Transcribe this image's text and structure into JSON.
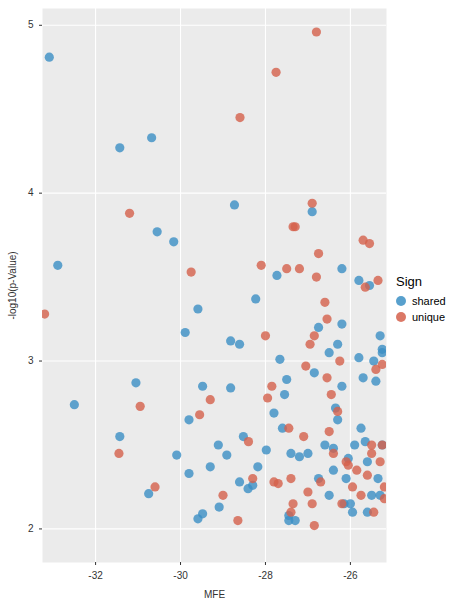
{
  "chart_data": {
    "type": "scatter",
    "x_label": "MFE",
    "y_label": "-log10(p-Value)",
    "legend_title": "Sign",
    "legend": "right",
    "grid": true,
    "xlim": [
      -33.25,
      -25.15
    ],
    "ylim": [
      1.8,
      5.1
    ],
    "xticks": [
      -32,
      -30,
      -28,
      -26
    ],
    "yticks": [
      2,
      3,
      4,
      5
    ],
    "series": [
      {
        "name": "shared",
        "color": "#3B8FC4",
        "x": [
          -33.09,
          -32.89,
          -32.5,
          -31.43,
          -31.43,
          -31.05,
          -30.68,
          -30.75,
          -30.55,
          -30.16,
          -30.09,
          -29.89,
          -29.8,
          -29.8,
          -29.59,
          -29.59,
          -29.48,
          -29.48,
          -29.3,
          -29.11,
          -29.09,
          -28.91,
          -28.82,
          -28.82,
          -28.73,
          -28.61,
          -28.61,
          -28.52,
          -28.41,
          -28.3,
          -28.23,
          -28.18,
          -27.98,
          -27.73,
          -27.8,
          -27.66,
          -27.5,
          -27.55,
          -27.6,
          -27.4,
          -27.45,
          -27.2,
          -27.0,
          -26.9,
          -26.85,
          -26.75,
          -26.75,
          -26.6,
          -26.5,
          -26.5,
          -26.4,
          -26.35,
          -26.3,
          -26.3,
          -26.2,
          -26.2,
          -26.2,
          -26.15,
          -26.1,
          -25.95,
          -25.9,
          -25.8,
          -25.8,
          -25.75,
          -25.7,
          -25.65,
          -25.6,
          -25.55,
          -25.5,
          -25.45,
          -25.4,
          -25.35,
          -25.3,
          -25.25,
          -25.25,
          -25.25,
          -25.3,
          -25.6,
          -26.0,
          -26.05,
          -26.4,
          -27.3,
          -27.45
        ],
        "values": [
          4.81,
          3.57,
          2.74,
          4.27,
          2.55,
          2.87,
          4.33,
          2.21,
          3.77,
          3.71,
          2.44,
          3.17,
          2.65,
          2.33,
          3.31,
          2.06,
          2.09,
          2.85,
          2.37,
          2.5,
          2.13,
          2.44,
          3.12,
          2.84,
          3.93,
          3.1,
          2.28,
          2.55,
          2.24,
          2.26,
          3.37,
          2.37,
          2.47,
          3.51,
          2.69,
          3.01,
          2.89,
          2.8,
          2.6,
          2.45,
          2.05,
          2.43,
          2.45,
          3.89,
          2.93,
          3.2,
          2.3,
          2.5,
          3.05,
          2.2,
          2.35,
          2.72,
          2.65,
          3.1,
          3.55,
          3.22,
          2.85,
          2.15,
          2.3,
          2.1,
          2.5,
          3.48,
          3.02,
          2.6,
          2.9,
          2.52,
          2.4,
          3.45,
          2.2,
          3.0,
          2.88,
          2.3,
          3.15,
          3.07,
          3.05,
          2.5,
          2.2,
          2.1,
          2.15,
          2.42,
          2.48,
          2.05,
          2.08
        ]
      },
      {
        "name": "unique",
        "color": "#D5604B",
        "x": [
          -33.2,
          -31.45,
          -31.2,
          -30.95,
          -30.6,
          -29.75,
          -29.55,
          -29.3,
          -29.0,
          -28.6,
          -28.65,
          -28.4,
          -28.3,
          -28.1,
          -28.0,
          -27.95,
          -27.85,
          -27.8,
          -27.7,
          -27.75,
          -27.5,
          -27.45,
          -27.35,
          -27.3,
          -27.2,
          -27.4,
          -27.35,
          -27.1,
          -27.05,
          -26.95,
          -26.85,
          -26.9,
          -26.8,
          -26.75,
          -26.85,
          -26.9,
          -26.8,
          -26.6,
          -26.55,
          -26.55,
          -26.5,
          -26.45,
          -26.4,
          -26.3,
          -26.25,
          -26.1,
          -26.05,
          -25.95,
          -25.85,
          -25.7,
          -25.65,
          -25.55,
          -25.5,
          -25.45,
          -25.4,
          -25.35,
          -25.3,
          -25.25,
          -25.25,
          -25.2,
          -25.2,
          -25.5,
          -25.75,
          -26.2,
          -26.7,
          -27.0,
          -27.4,
          -25.6
        ],
        "values": [
          3.28,
          2.45,
          3.88,
          2.73,
          2.25,
          3.53,
          2.68,
          2.77,
          2.2,
          4.45,
          2.05,
          2.52,
          2.3,
          3.57,
          3.15,
          2.78,
          2.85,
          2.28,
          2.27,
          4.72,
          3.55,
          2.6,
          3.8,
          3.8,
          3.55,
          2.1,
          2.15,
          2.55,
          2.97,
          3.1,
          3.15,
          3.94,
          3.5,
          3.64,
          2.02,
          2.15,
          4.96,
          3.35,
          3.25,
          2.9,
          2.58,
          2.8,
          2.45,
          2.7,
          3.0,
          2.4,
          2.38,
          2.25,
          2.35,
          3.72,
          3.44,
          3.7,
          2.45,
          2.1,
          2.95,
          3.48,
          2.4,
          2.98,
          2.5,
          2.25,
          2.18,
          2.5,
          2.2,
          2.15,
          2.28,
          2.22,
          2.3,
          2.32
        ]
      }
    ]
  }
}
